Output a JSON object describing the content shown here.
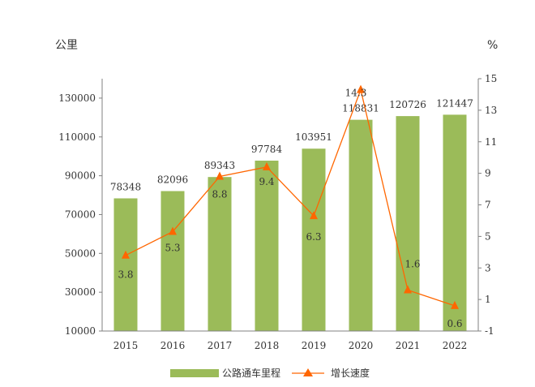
{
  "chart_data": {
    "type": "bar",
    "categories": [
      "2015",
      "2016",
      "2017",
      "2018",
      "2019",
      "2020",
      "2021",
      "2022"
    ],
    "series": [
      {
        "name": "公路通车里程",
        "type": "bar",
        "axis": "left",
        "color": "#9bbb59",
        "values": [
          78348,
          82096,
          89343,
          97784,
          103951,
          118831,
          120726,
          121447
        ],
        "labels": [
          "78348",
          "82096",
          "89343",
          "97784",
          "103951",
          "118831",
          "120726",
          "121447"
        ]
      },
      {
        "name": "增长速度",
        "type": "line",
        "axis": "right",
        "color": "#ff6600",
        "values": [
          3.8,
          5.3,
          8.8,
          9.4,
          6.3,
          14.3,
          1.6,
          0.6
        ],
        "labels": [
          "3.8",
          "5.3",
          "8.8",
          "9.4",
          "6.3",
          "14.3",
          "1.6",
          "0.6"
        ]
      }
    ],
    "y_left": {
      "unit": "公里",
      "ylim": [
        10000,
        140000
      ],
      "ticks": [
        "130000",
        "110000",
        "90000",
        "70000",
        "50000",
        "30000",
        "10000"
      ]
    },
    "y_right": {
      "unit": "%",
      "ylim": [
        -1,
        15
      ],
      "ticks": [
        "15",
        "13",
        "11",
        "9",
        "7",
        "5",
        "3",
        "1",
        "-1"
      ]
    },
    "grid": false,
    "legend_position": "bottom-center"
  }
}
